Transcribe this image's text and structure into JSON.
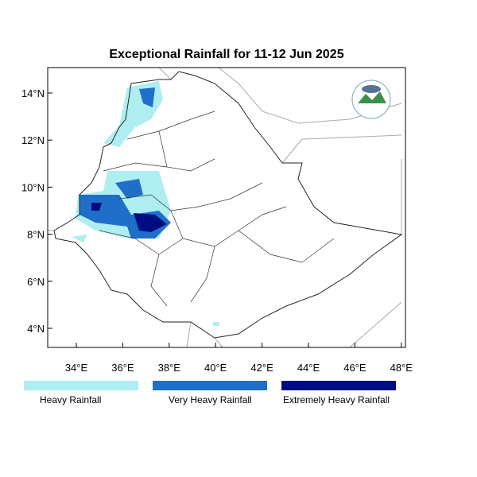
{
  "title": "Exceptional Rainfall for 11-12 Jun 2025",
  "y_axis_labels": [
    "14°N",
    "12°N",
    "10°N",
    "8°N",
    "6°N",
    "4°N"
  ],
  "x_axis_labels": [
    "34°E",
    "36°E",
    "38°E",
    "40°E",
    "42°E",
    "44°E",
    "46°E",
    "48°E"
  ],
  "legend": [
    {
      "label": "Heavy Rainfall",
      "color": "#aeeef0"
    },
    {
      "label": "Very Heavy Rainfall",
      "color": "#1f6fc8"
    },
    {
      "label": "Extremely Heavy Rainfall",
      "color": "#000d82"
    }
  ]
}
